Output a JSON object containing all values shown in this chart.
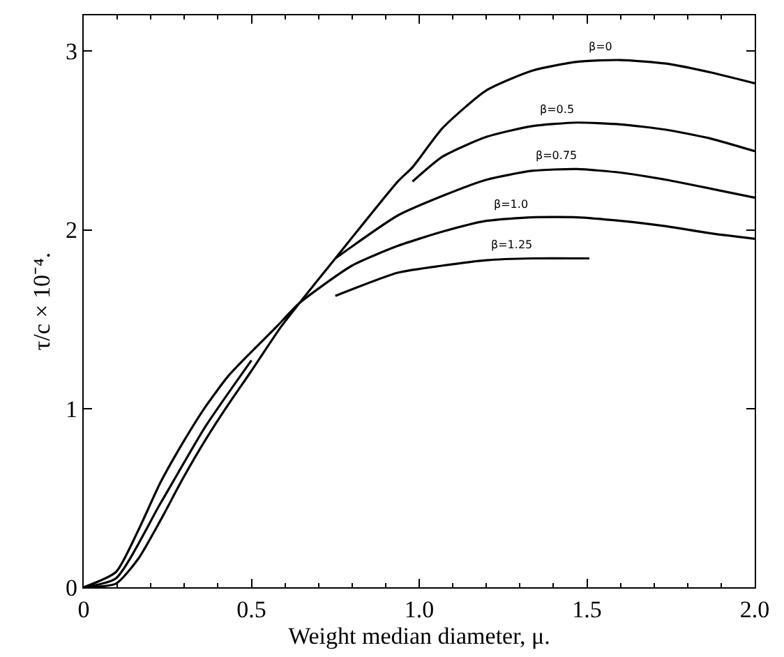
{
  "chart_data": {
    "type": "line",
    "xlabel": "Weight median diameter, μ.",
    "ylabel": "τ/c × 10⁻⁴.",
    "xlim": [
      0,
      2.0
    ],
    "ylim": [
      0,
      3.2
    ],
    "xticks": [
      0,
      0.5,
      {
        "value": 1.0,
        "label": "1.0"
      },
      1.5,
      {
        "value": 2.0,
        "label": "2.0"
      }
    ],
    "yticks": [
      0,
      1,
      2,
      3
    ],
    "grid": false,
    "legend": false,
    "marker": "none",
    "line_style": "solid",
    "series": [
      {
        "name": "β=0",
        "color": "#000000",
        "x": [
          0,
          0.096,
          0.163,
          0.229,
          0.296,
          0.363,
          0.43,
          0.496,
          0.589,
          0.643,
          0.75,
          0.936,
          0.98,
          1.07,
          1.2,
          1.336,
          1.47,
          1.6,
          1.736,
          1.87,
          2.0
        ],
        "values": [
          0,
          0.02,
          0.16,
          0.375,
          0.61,
          0.825,
          1.02,
          1.2,
          1.46,
          1.59,
          1.84,
          2.27,
          2.35,
          2.57,
          2.78,
          2.89,
          2.94,
          2.95,
          2.93,
          2.88,
          2.82
        ]
      },
      {
        "color": "#000000",
        "x": [
          0,
          0.096,
          0.229,
          0.363,
          0.5
        ],
        "values": [
          0,
          0.05,
          0.47,
          0.9,
          1.27
        ]
      },
      {
        "name": "β=0.5",
        "color": "#000000",
        "x": [
          0.98,
          1.07,
          1.2,
          1.336,
          1.47,
          1.6,
          1.736,
          1.87,
          2.0
        ],
        "values": [
          2.27,
          2.41,
          2.52,
          2.58,
          2.6,
          2.59,
          2.56,
          2.51,
          2.44
        ]
      },
      {
        "name": "β=0.75",
        "color": "#000000",
        "x": [
          0.75,
          0.936,
          1.07,
          1.2,
          1.336,
          1.47,
          1.6,
          1.736,
          1.87,
          2.0
        ],
        "values": [
          1.84,
          2.08,
          2.19,
          2.28,
          2.33,
          2.34,
          2.32,
          2.28,
          2.23,
          2.18
        ]
      },
      {
        "name": "β=1.0",
        "color": "#000000",
        "x": [
          0,
          0.096,
          0.163,
          0.229,
          0.296,
          0.363,
          0.43,
          0.496,
          0.576,
          0.643,
          0.8,
          0.936,
          1.07,
          1.2,
          1.336,
          1.47,
          1.6,
          1.736,
          1.87,
          2.0
        ],
        "values": [
          0,
          0.085,
          0.32,
          0.587,
          0.81,
          1.01,
          1.18,
          1.31,
          1.46,
          1.59,
          1.8,
          1.91,
          1.99,
          2.05,
          2.07,
          2.07,
          2.05,
          2.02,
          1.98,
          1.95
        ]
      },
      {
        "name": "β=1.25",
        "color": "#000000",
        "x": [
          0.75,
          0.936,
          1.07,
          1.2,
          1.336,
          1.507
        ],
        "values": [
          1.63,
          1.76,
          1.8,
          1.83,
          1.84,
          1.84
        ]
      }
    ]
  }
}
